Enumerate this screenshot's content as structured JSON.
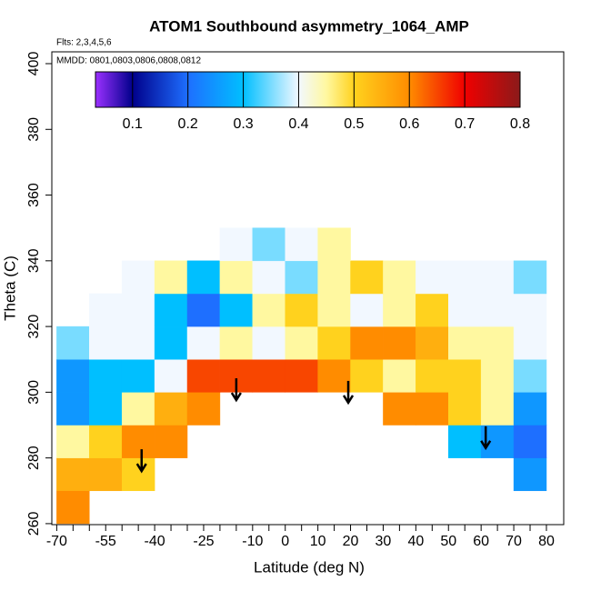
{
  "chart_data": {
    "type": "heatmap",
    "title": "ATOM1 Southbound asymmetry_1064_AMP",
    "subtitle": "Flts: 2,3,4,5,6",
    "annotation": "MMDD: 0801,0803,0806,0808,0812",
    "xlabel": "Latitude (deg N)",
    "ylabel": "Theta (C)",
    "xlim": [
      -71.5,
      85.3
    ],
    "ylim": [
      259.7,
      403.6
    ],
    "xticks": [
      -70,
      -55,
      -40,
      -25,
      -10,
      0,
      10,
      20,
      30,
      40,
      50,
      60,
      70,
      80
    ],
    "xminor_ticks": [
      -65,
      -60,
      -50,
      -45,
      -35,
      -30,
      -20,
      -15,
      -5,
      5,
      15,
      25,
      35,
      45,
      55,
      65,
      75
    ],
    "yticks": [
      260,
      280,
      300,
      320,
      340,
      360,
      380,
      400
    ],
    "x_edges": [
      -70,
      -60,
      -50,
      -40,
      -30,
      -20,
      -10,
      0,
      10,
      20,
      30,
      40,
      50,
      60,
      70,
      80
    ],
    "y_edges": [
      260,
      270,
      280,
      290,
      300,
      310,
      320,
      330,
      340,
      350
    ],
    "z": [
      [
        0.6,
        null,
        null,
        null,
        null,
        null,
        null,
        null,
        null,
        null,
        null,
        null,
        null,
        null,
        null
      ],
      [
        0.55,
        0.55,
        0.5,
        null,
        null,
        null,
        null,
        null,
        null,
        null,
        null,
        null,
        null,
        null,
        0.25
      ],
      [
        0.45,
        0.5,
        0.6,
        0.6,
        null,
        null,
        null,
        null,
        null,
        null,
        null,
        null,
        0.3,
        0.25,
        0.2
      ],
      [
        0.25,
        0.3,
        0.45,
        0.55,
        0.6,
        null,
        null,
        null,
        null,
        null,
        0.6,
        0.6,
        0.5,
        0.45,
        0.25
      ],
      [
        0.25,
        0.3,
        0.3,
        0.4,
        0.65,
        0.65,
        0.65,
        0.65,
        0.6,
        0.5,
        0.45,
        0.5,
        0.5,
        0.45,
        0.35
      ],
      [
        0.35,
        0.4,
        0.4,
        0.3,
        0.4,
        0.45,
        0.4,
        0.45,
        0.5,
        0.6,
        0.6,
        0.55,
        0.45,
        0.45,
        0.4
      ],
      [
        null,
        0.4,
        0.4,
        0.3,
        0.2,
        0.3,
        0.45,
        0.5,
        0.45,
        0.4,
        0.45,
        0.5,
        0.4,
        0.4,
        0.4
      ],
      [
        null,
        null,
        0.4,
        0.45,
        0.3,
        0.45,
        0.4,
        0.35,
        0.45,
        0.5,
        0.45,
        0.4,
        0.4,
        0.4,
        0.35
      ],
      [
        null,
        null,
        null,
        null,
        null,
        0.4,
        0.35,
        0.4,
        0.45,
        null,
        null,
        null,
        null,
        null,
        null
      ]
    ],
    "colorbar_lim": [
      0.033,
      0.8
    ],
    "colorbar_ticks": [
      0.1,
      0.2,
      0.3,
      0.4,
      0.5,
      0.6,
      0.7,
      0.8
    ],
    "colormap": [
      {
        "value": 0.033,
        "color": "#9b30ff"
      },
      {
        "value": 0.1,
        "color": "#00008b"
      },
      {
        "value": 0.2,
        "color": "#1e6fff"
      },
      {
        "value": 0.3,
        "color": "#00bfff"
      },
      {
        "value": 0.4,
        "color": "#f2f8ff"
      },
      {
        "value": 0.45,
        "color": "#fff8a0"
      },
      {
        "value": 0.5,
        "color": "#ffd21e"
      },
      {
        "value": 0.6,
        "color": "#ff8c00"
      },
      {
        "value": 0.7,
        "color": "#f00000"
      },
      {
        "value": 0.8,
        "color": "#8b1a1a"
      }
    ],
    "arrows": [
      {
        "x": -44,
        "y": 276
      },
      {
        "x": -15,
        "y": 297.6
      },
      {
        "x": 19.3,
        "y": 296.8
      },
      {
        "x": 61.4,
        "y": 283
      }
    ]
  }
}
